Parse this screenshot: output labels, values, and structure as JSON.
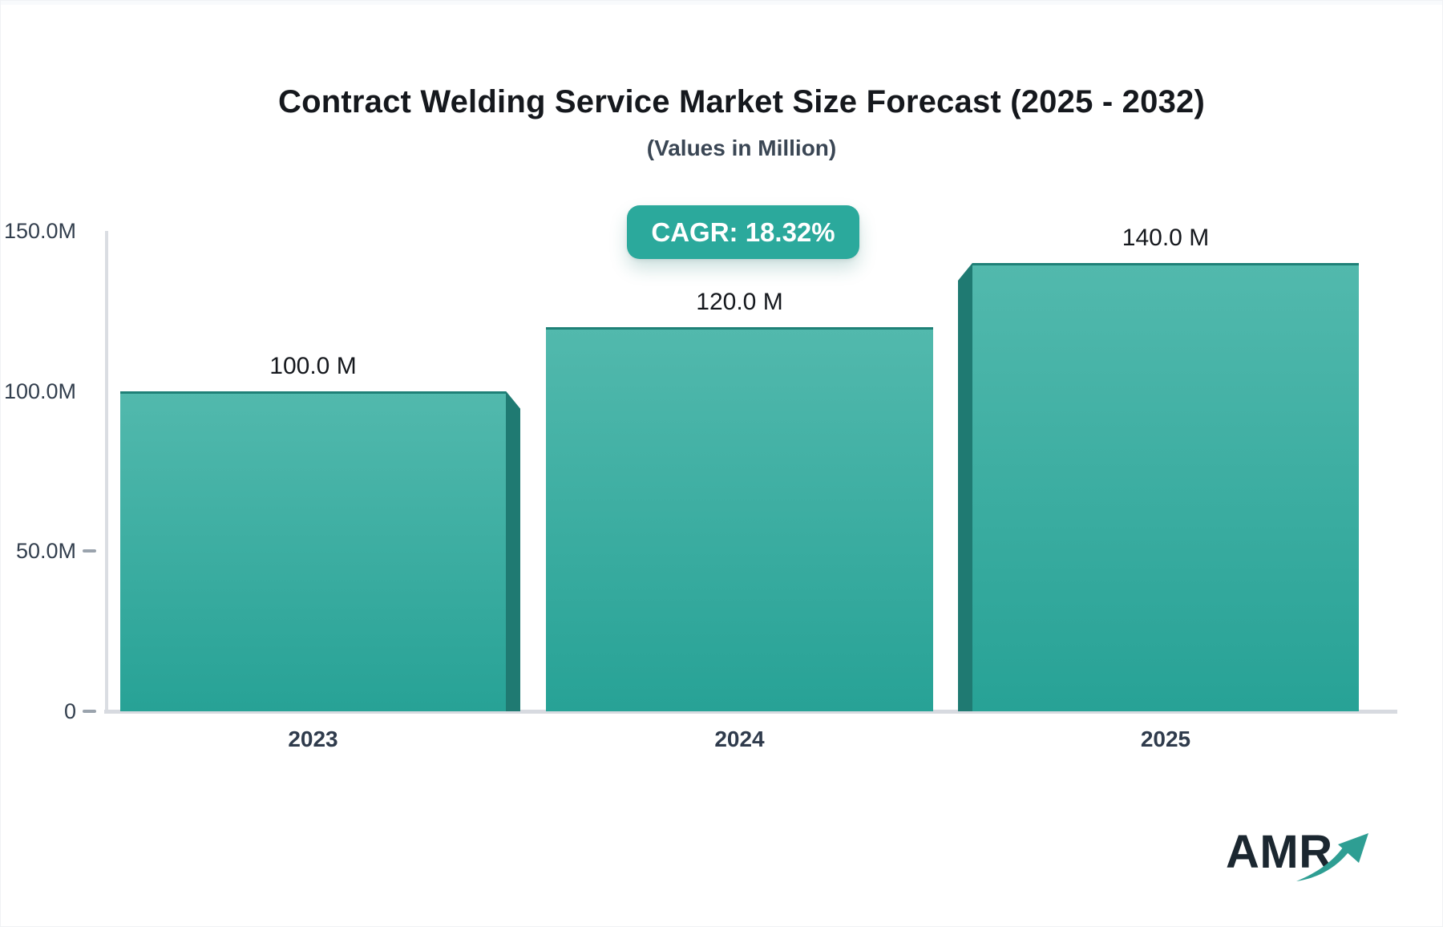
{
  "title": "Contract Welding Service Market Size Forecast (2025 - 2032)",
  "subtitle": "(Values in Million)",
  "badge": {
    "label": "CAGR: 18.32%"
  },
  "chart_data": {
    "type": "bar",
    "title": "Contract Welding Service Market Size Forecast (2025 - 2032)",
    "subtitle": "(Values in Million)",
    "cagr": "18.32%",
    "categories": [
      "2023",
      "2024",
      "2025"
    ],
    "values": [
      100.0,
      120.0,
      140.0
    ],
    "bar_labels": [
      "100.0 M",
      "120.0 M",
      "140.0 M"
    ],
    "xlabel": "",
    "ylabel": "",
    "ylim": [
      0,
      150
    ],
    "yticks": [
      {
        "label": "150.0M",
        "value": 150
      },
      {
        "label": "100.0M",
        "value": 100
      },
      {
        "label": "50.0M",
        "value": 50
      },
      {
        "label": "0",
        "value": 0
      }
    ],
    "grid": false,
    "legend": false,
    "bar_color_top": "#52B9AD",
    "bar_color_bottom": "#27A296",
    "bar_edge_color": "#1F7A72"
  },
  "logo": {
    "text": "AMR",
    "icon": "growth-arrow"
  },
  "colors": {
    "badge_background": "#2BA99C",
    "bar_top": "#52B9AD",
    "bar_bottom": "#27A296",
    "bar_edge": "#1F7A72",
    "axis_line": "#DADDE2",
    "text_dark": "#15181d",
    "text_slate": "#333F4E",
    "logo_navy": "#1B2730",
    "logo_teal": "#2E9E93"
  }
}
